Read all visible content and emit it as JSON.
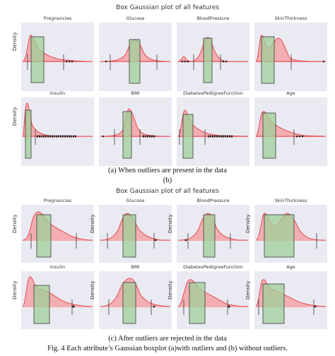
{
  "figures": [
    {
      "title": "Box Gaussian plot of all features",
      "panels": [
        {
          "title": "Pregnancies",
          "ylabel": "Density"
        },
        {
          "title": "Glucose",
          "ylabel": ""
        },
        {
          "title": "BloodPressure",
          "ylabel": ""
        },
        {
          "title": "SkinThickness",
          "ylabel": ""
        },
        {
          "title": "Insulin",
          "ylabel": "Density"
        },
        {
          "title": "BMI",
          "ylabel": ""
        },
        {
          "title": "DiabetesPedigreeFunction",
          "ylabel": ""
        },
        {
          "title": "Age",
          "ylabel": ""
        }
      ],
      "caption_a": "(a)   When outliers are present in the data",
      "caption_b": "(b)"
    },
    {
      "title": "Box Gaussian plot of all features",
      "panels": [
        {
          "title": "Pregnancies",
          "ylabel": "Density"
        },
        {
          "title": "Glucose",
          "ylabel": "Density"
        },
        {
          "title": "BloodPressure",
          "ylabel": "Density"
        },
        {
          "title": "SkinThickness",
          "ylabel": "Density"
        },
        {
          "title": "Insulin",
          "ylabel": "Density"
        },
        {
          "title": "BMI",
          "ylabel": "Density"
        },
        {
          "title": "DiabetesPedigreeFunction",
          "ylabel": "Density"
        },
        {
          "title": "Age",
          "ylabel": "Density"
        }
      ],
      "caption_c": "(c)   After outliers are rejected in the data"
    }
  ],
  "figure_caption": "Fig. 4 Each attribute’s Gaussian boxplot (a)with outliers and (b) without outliers.",
  "colors": {
    "kde_fill": "#f4a3a6",
    "kde_line": "#e8494f",
    "box_fill": "#9fcf9a",
    "box_edge": "#3a3a3a",
    "axes_bg": "#eaeaf2"
  }
}
